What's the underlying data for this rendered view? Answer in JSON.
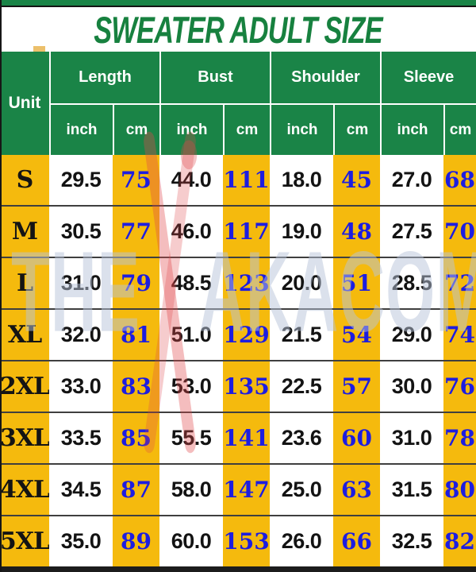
{
  "page": {
    "title": "SWEATER ADULT SIZE"
  },
  "watermark": {
    "left": "THE",
    "right": "AKACOM",
    "logo": "red-ribbon-bird"
  },
  "colors": {
    "header_green": "#1a8447",
    "title_green": "#17813f",
    "cell_yellow": "#f5ba0d",
    "cm_value_blue": "#1d1de0",
    "inch_value_black": "#131313",
    "bottom_bar_black": "#1c1c1c"
  },
  "chart_data": {
    "type": "table",
    "title": "SWEATER ADULT SIZE",
    "unit_header": "Unit",
    "measure_groups": [
      "Length",
      "Bust",
      "Shoulder",
      "Sleeve"
    ],
    "unit_subheaders": [
      "inch",
      "cm"
    ],
    "columns": [
      "Unit",
      "Length inch",
      "Length cm",
      "Bust inch",
      "Bust cm",
      "Shoulder inch",
      "Shoulder cm",
      "Sleeve inch",
      "Sleeve cm"
    ],
    "rows": [
      {
        "size": "S",
        "values": [
          "29.5",
          "75",
          "44.0",
          "111",
          "18.0",
          "45",
          "27.0",
          "68"
        ]
      },
      {
        "size": "M",
        "values": [
          "30.5",
          "77",
          "46.0",
          "117",
          "19.0",
          "48",
          "27.5",
          "70"
        ]
      },
      {
        "size": "L",
        "values": [
          "31.0",
          "79",
          "48.5",
          "123",
          "20.0",
          "51",
          "28.5",
          "72"
        ]
      },
      {
        "size": "XL",
        "values": [
          "32.0",
          "81",
          "51.0",
          "129",
          "21.5",
          "54",
          "29.0",
          "74"
        ]
      },
      {
        "size": "2XL",
        "values": [
          "33.0",
          "83",
          "53.0",
          "135",
          "22.5",
          "57",
          "30.0",
          "76"
        ]
      },
      {
        "size": "3XL",
        "values": [
          "33.5",
          "85",
          "55.5",
          "141",
          "23.6",
          "60",
          "31.0",
          "78"
        ]
      },
      {
        "size": "4XL",
        "values": [
          "34.5",
          "87",
          "58.0",
          "147",
          "25.0",
          "63",
          "31.5",
          "80"
        ]
      },
      {
        "size": "5XL",
        "values": [
          "35.0",
          "89",
          "60.0",
          "153",
          "26.0",
          "66",
          "32.5",
          "82"
        ]
      }
    ]
  }
}
